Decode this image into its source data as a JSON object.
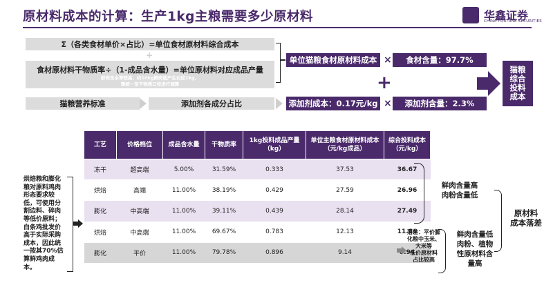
{
  "header": {
    "title": "原材料成本的计算：生产1kg主粮需要多少原材料",
    "logo_cn": "华鑫证券",
    "logo_en": "CHINA FORTUNE SECURITIES"
  },
  "formula": {
    "row1": "Σ（各类食材单价×占比）=单位食材原材料综合成本",
    "plus_small": "+",
    "row2": "食材原材料干物质率÷（1-成品含水量）=单位原材料对应成品产量",
    "note": "鲜肉含水率较高，约10kg鲜肉能产生对应1kg，\n需统一至干物质口径进行测算",
    "row3_left": "猫粮营养标准",
    "row3_right": "添加剂各成分占比"
  },
  "calc": {
    "food_cost": "单位猫粮食材原材料成本",
    "times1": "×",
    "food_ratio": "食材含量：97.7%",
    "plus": "+",
    "additive_cost": "添加剂成本：0.17元/kg",
    "times2": "×",
    "additive_ratio": "添加剂含量：2.3%",
    "result": "猫粮\n综合\n投料\n成本"
  },
  "table": {
    "headers": [
      "工艺",
      "价格档位",
      "成品含水量",
      "干物质率",
      "1kg投料成品产量\n（kg）",
      "单位主粮食材原材料成本\n（元/kg成品）",
      "综合投料成本\n（元/kg）"
    ],
    "rows": [
      [
        "冻干",
        "超高端",
        "5.00%",
        "31.59%",
        "0.333",
        "37.53",
        "36.67"
      ],
      [
        "烘焙",
        "高端",
        "11.00%",
        "38.19%",
        "0.429",
        "27.59",
        "26.96"
      ],
      [
        "膨化",
        "中高端",
        "11.00%",
        "39.11%",
        "0.439",
        "28.14",
        "27.49"
      ],
      [
        "烘焙",
        "中高端",
        "11.00%",
        "69.67%",
        "0.783",
        "12.13",
        "11.86"
      ],
      [
        "膨化",
        "平价",
        "11.00%",
        "79.78%",
        "0.896",
        "9.14",
        "8.94"
      ]
    ]
  },
  "side_note": "烘焙粮和膨化粮对原料鸡肉形态要求较低，可使用分割边料、碎肉等低价原料；白条鸡批发价高于实际采购成本，因此统一按其70%估算鲜鸡肉成本。",
  "right": {
    "group1": "鲜肉含量高\n肉粉含量低",
    "group2": "鲜肉含量低\n肉粉、植物\n性原材料含\n量高",
    "drop_note": "落差：平价膨\n化粮中玉米、\n大米等\n低价原材料\n占比较高",
    "conclusion": "原材料\n成本落差"
  }
}
